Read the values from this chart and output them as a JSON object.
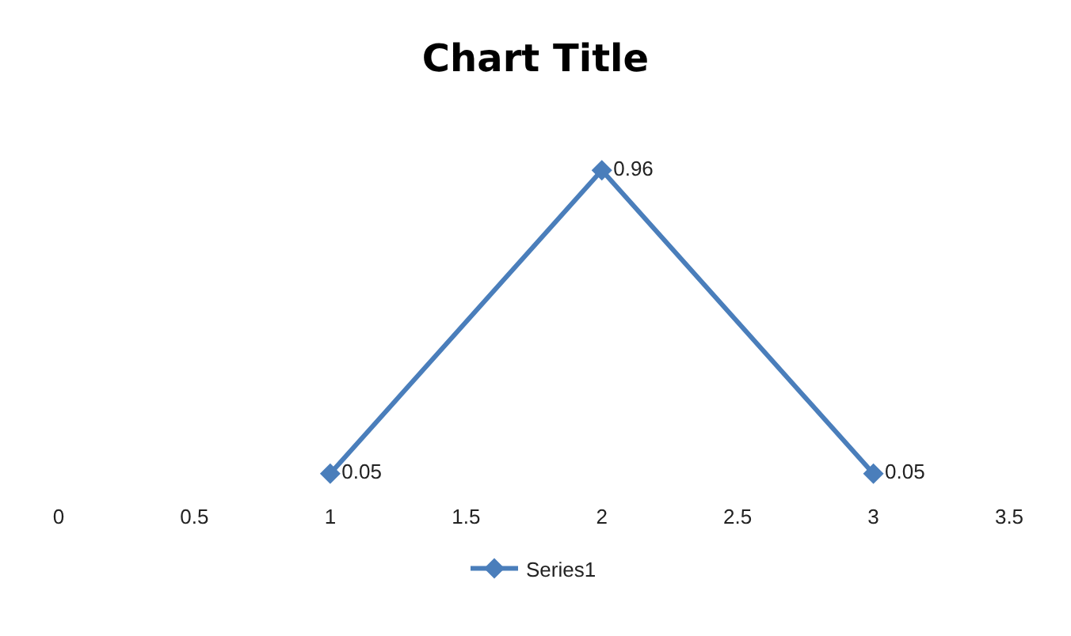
{
  "chart_data": {
    "type": "line",
    "title": "Chart Title",
    "x": [
      1,
      2,
      3
    ],
    "series": [
      {
        "name": "Series1",
        "color": "#4a7ebb",
        "values": [
          0.05,
          0.96,
          0.05
        ]
      }
    ],
    "xlim": [
      0,
      3.5
    ],
    "xticks": [
      0,
      0.5,
      1,
      1.5,
      2,
      2.5,
      3,
      3.5
    ],
    "tick_labels": "x",
    "grid": false,
    "legend": "bottom",
    "marker": "diamond",
    "line_style": "solid",
    "data_labels": true
  }
}
